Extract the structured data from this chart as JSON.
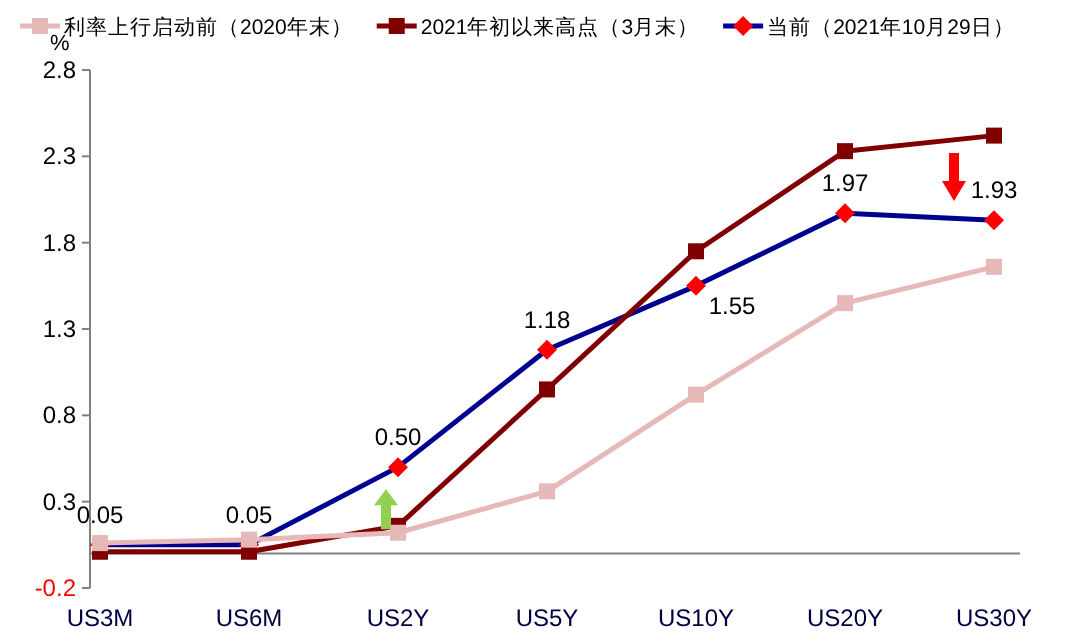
{
  "chart_data": {
    "type": "line",
    "ylabel": "%",
    "categories": [
      "US3M",
      "US6M",
      "US2Y",
      "US5Y",
      "US10Y",
      "US20Y",
      "US30Y"
    ],
    "series": [
      {
        "name": "利率上行启动前（2020年末）",
        "color": "#e6b8b7",
        "marker": "square",
        "values": [
          0.06,
          0.08,
          0.12,
          0.36,
          0.92,
          1.45,
          1.66
        ]
      },
      {
        "name": "2021年初以来高点（3月末）",
        "color": "#800000",
        "marker": "square",
        "values": [
          0.01,
          0.01,
          0.16,
          0.95,
          1.75,
          2.33,
          2.42
        ]
      },
      {
        "name": "当前（2021年10月29日）",
        "color": "#000090",
        "colors": [
          "#ff0000",
          "#ff0000",
          "#ff0000",
          "#ff0000",
          "#ff0000",
          "#ff0000",
          "#ff0000"
        ],
        "marker": "diamond",
        "values": [
          0.05,
          0.05,
          0.5,
          1.18,
          1.55,
          1.97,
          1.93
        ],
        "value_labels": [
          "0.05",
          "0.05",
          "0.50",
          "1.18",
          "1.55",
          "1.97",
          "1.93"
        ]
      }
    ],
    "ylim": [
      -0.2,
      2.8
    ],
    "yticks": [
      -0.2,
      0.3,
      0.8,
      1.3,
      1.8,
      2.3,
      2.8
    ],
    "grid": false,
    "legend": "top"
  }
}
